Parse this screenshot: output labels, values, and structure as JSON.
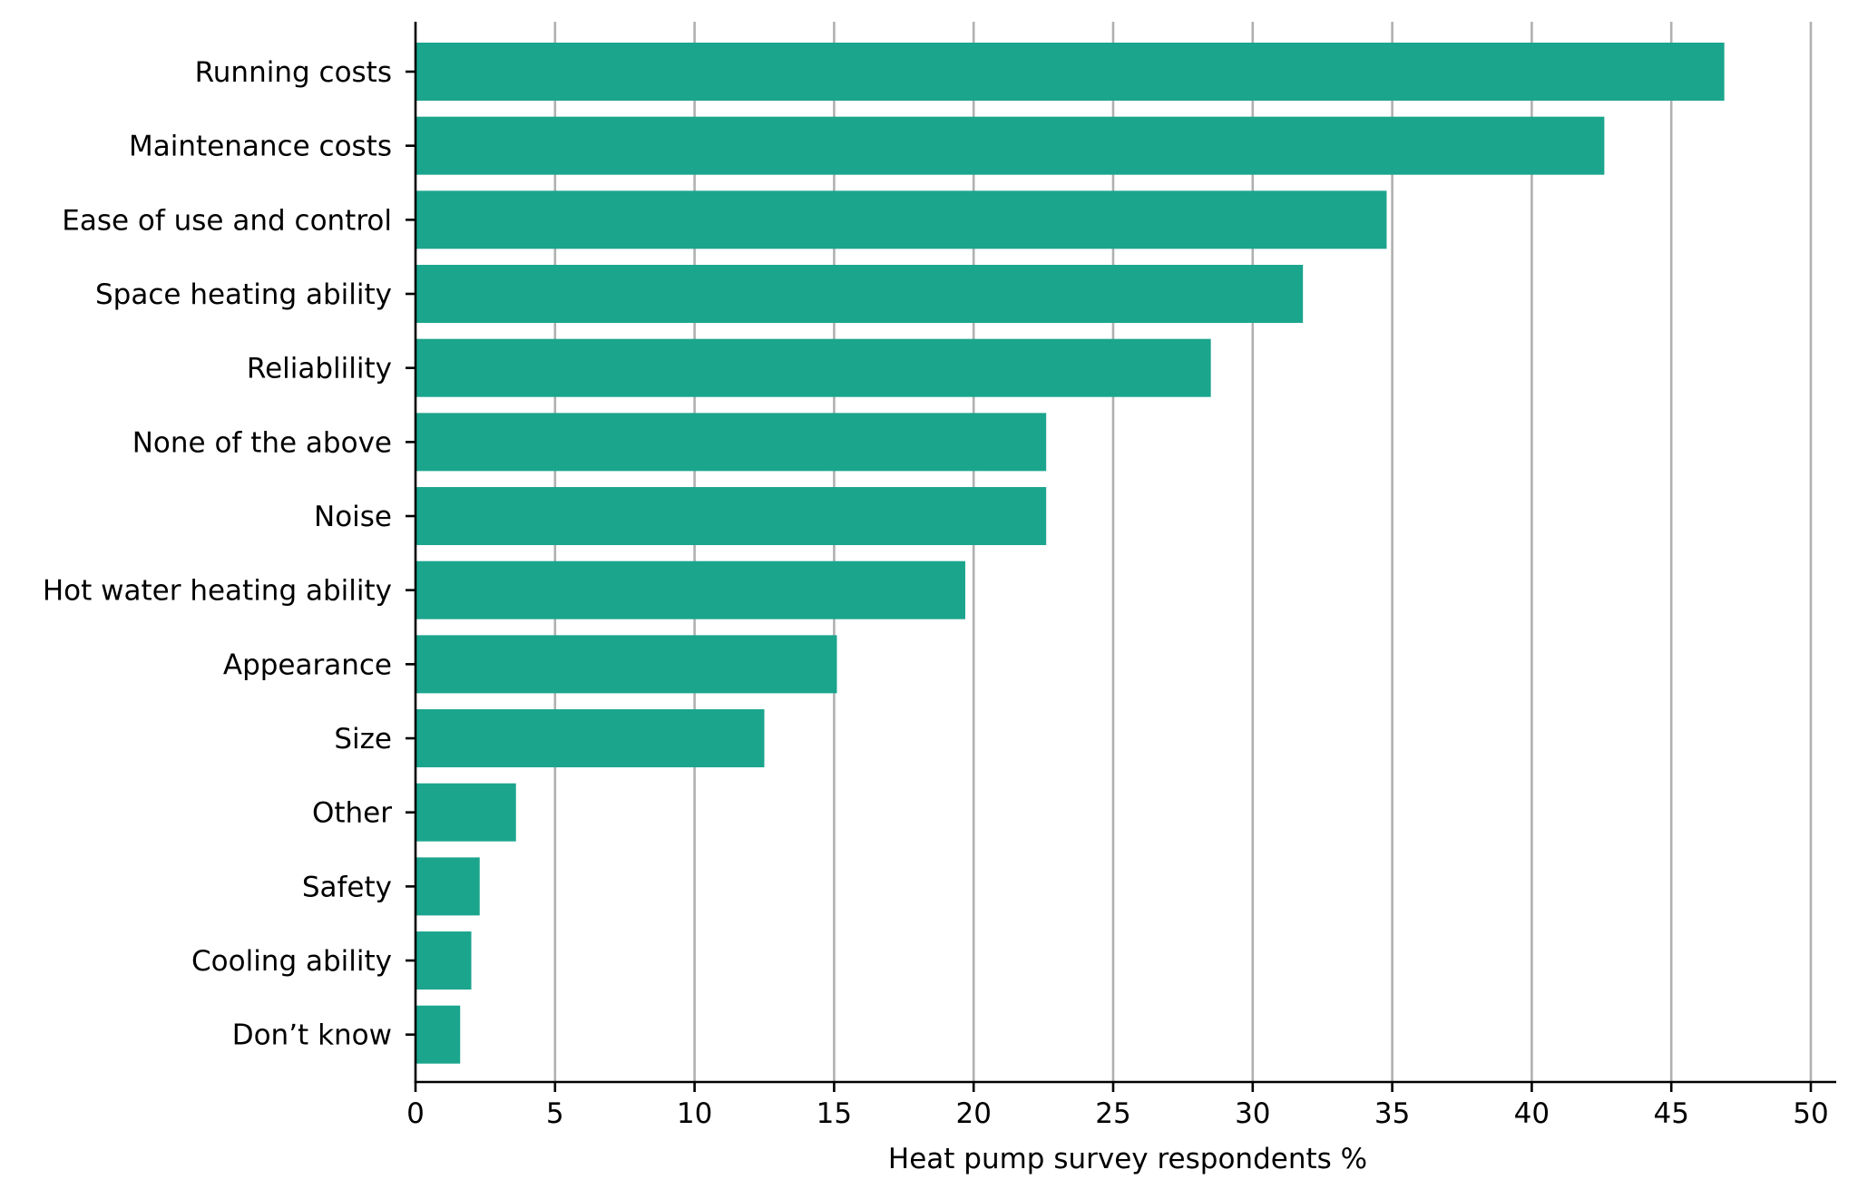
{
  "chart_data": {
    "type": "bar",
    "orientation": "horizontal",
    "categories": [
      "Running costs",
      "Maintenance costs",
      "Ease of use and control",
      "Space heating ability",
      "Reliablility",
      "None of the above",
      "Noise",
      "Hot water heating ability",
      "Appearance",
      "Size",
      "Other",
      "Safety",
      "Cooling ability",
      "Don’t know"
    ],
    "values": [
      46.9,
      42.6,
      34.8,
      31.8,
      28.5,
      22.6,
      22.6,
      19.7,
      15.1,
      12.5,
      3.6,
      2.3,
      2.0,
      1.6
    ],
    "title": "",
    "xlabel": "Heat pump survey respondents %",
    "ylabel": "",
    "xlim": [
      0,
      50
    ],
    "xticks": [
      "0",
      "5",
      "10",
      "15",
      "20",
      "25",
      "30",
      "35",
      "40",
      "45",
      "50"
    ],
    "grid": "vertical",
    "bar_color": "#1ba58d",
    "grid_color": "#b0b0b0",
    "axis_color": "#000000"
  }
}
